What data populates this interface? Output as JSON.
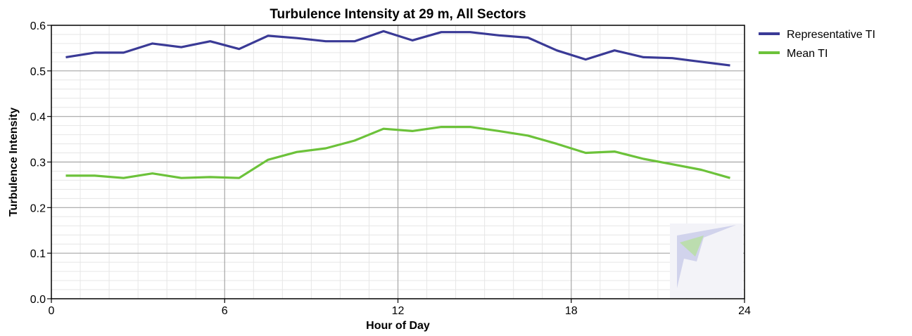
{
  "chart_data": {
    "type": "line",
    "title": "Turbulence Intensity at 29 m, All Sectors",
    "xlabel": "Hour of Day",
    "ylabel": "Turbulence Intensity",
    "xlim": [
      0,
      24
    ],
    "ylim": [
      0,
      0.6
    ],
    "xticks": [
      "0",
      "6",
      "12",
      "18",
      "24"
    ],
    "yticks": [
      "0.0",
      "0.1",
      "0.2",
      "0.3",
      "0.4",
      "0.5",
      "0.6"
    ],
    "grid": true,
    "legend_position": "top-right",
    "x": [
      0.5,
      1.5,
      2.5,
      3.5,
      4.5,
      5.5,
      6.5,
      7.5,
      8.5,
      9.5,
      10.5,
      11.5,
      12.5,
      13.5,
      14.5,
      15.5,
      16.5,
      17.5,
      18.5,
      19.5,
      20.5,
      21.5,
      22.5,
      23.5
    ],
    "series": [
      {
        "name": "Representative TI",
        "color": "#3a3a96",
        "values": [
          0.53,
          0.54,
          0.54,
          0.56,
          0.552,
          0.565,
          0.548,
          0.577,
          0.572,
          0.565,
          0.565,
          0.587,
          0.567,
          0.585,
          0.585,
          0.578,
          0.573,
          0.545,
          0.525,
          0.545,
          0.53,
          0.528,
          0.52,
          0.512
        ]
      },
      {
        "name": "Mean TI",
        "color": "#6cc23a",
        "values": [
          0.27,
          0.27,
          0.265,
          0.275,
          0.265,
          0.267,
          0.265,
          0.305,
          0.322,
          0.33,
          0.347,
          0.373,
          0.368,
          0.377,
          0.377,
          0.368,
          0.358,
          0.34,
          0.32,
          0.323,
          0.307,
          0.295,
          0.283,
          0.265
        ]
      }
    ]
  }
}
